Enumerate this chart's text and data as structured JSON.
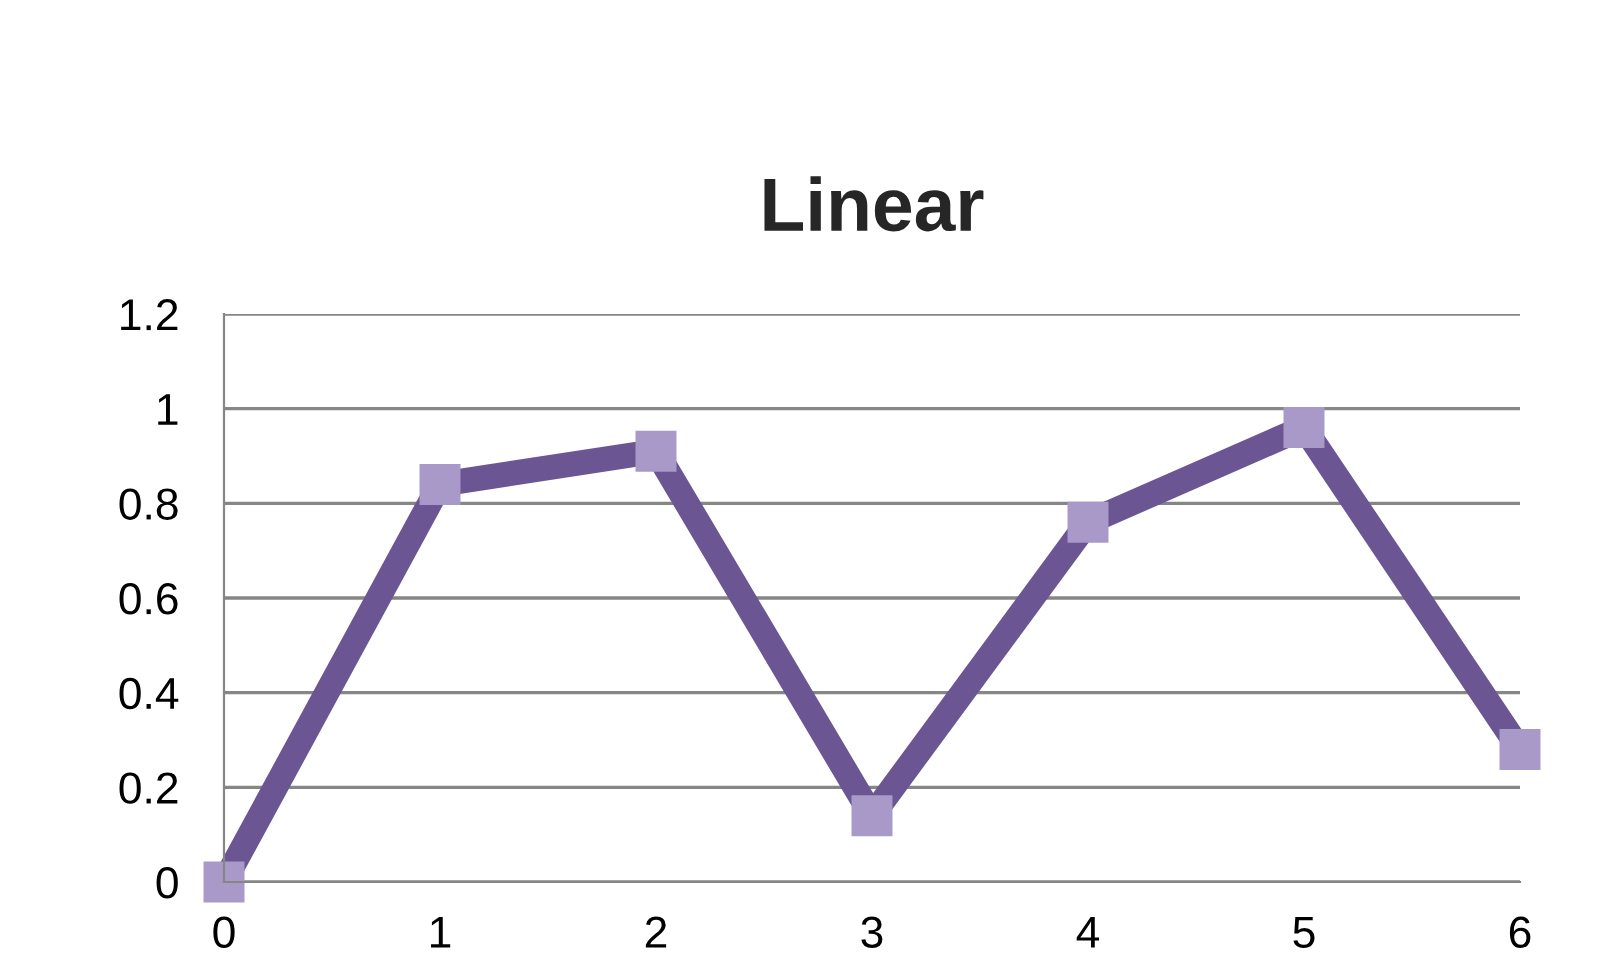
{
  "chart_data": {
    "type": "line",
    "title": "Linear",
    "x": [
      0,
      1,
      2,
      3,
      4,
      5,
      6
    ],
    "series": [
      {
        "color": "#6b5592",
        "values": [
          0,
          0.84,
          0.91,
          0.14,
          0.76,
          0.96,
          0.28
        ]
      }
    ],
    "xlim": [
      0,
      6
    ],
    "xticks": [
      0,
      1,
      2,
      3,
      4,
      5,
      6
    ],
    "ylim": [
      0,
      1.2
    ],
    "yticks": [
      0,
      0.2,
      0.4,
      0.6,
      0.8,
      1,
      1.2
    ],
    "grid": "y",
    "marker": "square",
    "line_style": "solid"
  }
}
